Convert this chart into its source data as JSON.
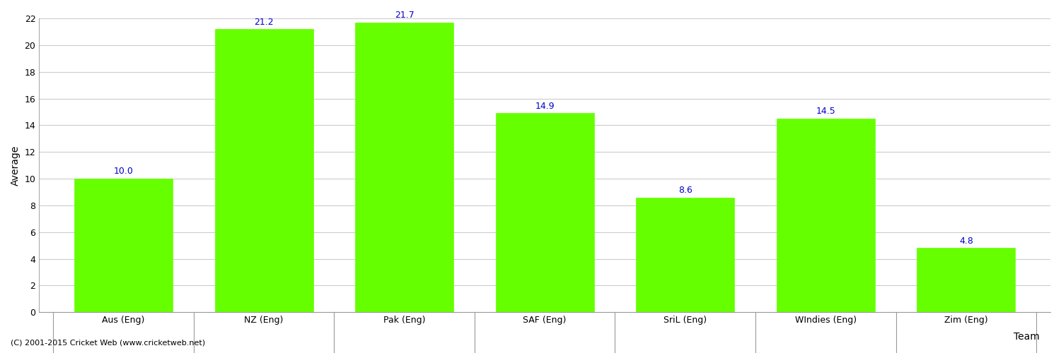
{
  "categories": [
    "Aus (Eng)",
    "NZ (Eng)",
    "Pak (Eng)",
    "SAF (Eng)",
    "SriL (Eng)",
    "WIndies (Eng)",
    "Zim (Eng)"
  ],
  "values": [
    10.0,
    21.2,
    21.7,
    14.9,
    8.6,
    14.5,
    4.8
  ],
  "bar_color": "#66ff00",
  "bar_edge_color": "#66ff00",
  "label_color": "#0000cc",
  "ylabel": "Average",
  "xlabel": "Team",
  "ylim": [
    0,
    22
  ],
  "yticks": [
    0,
    2,
    4,
    6,
    8,
    10,
    12,
    14,
    16,
    18,
    20,
    22
  ],
  "grid_color": "#cccccc",
  "background_color": "#ffffff",
  "label_fontsize": 9,
  "axis_label_fontsize": 10,
  "tick_fontsize": 9,
  "footer_text": "(C) 2001-2015 Cricket Web (www.cricketweb.net)",
  "footer_fontsize": 8
}
